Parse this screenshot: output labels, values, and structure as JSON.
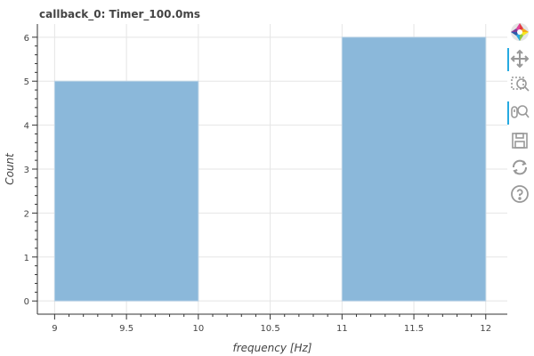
{
  "chart_data": {
    "type": "bar",
    "title": "callback_0: Timer_100.0ms",
    "xlabel": "frequency [Hz]",
    "ylabel": "Count",
    "bins": [
      {
        "x0": 9,
        "x1": 10,
        "count": 5
      },
      {
        "x0": 11,
        "x1": 12,
        "count": 6
      }
    ],
    "xlim": [
      8.88,
      12.15
    ],
    "ylim": [
      -0.3,
      6.3
    ],
    "xticks": [
      "9",
      "9.5",
      "10",
      "10.5",
      "11",
      "11.5",
      "12"
    ],
    "xtick_values": [
      9,
      9.5,
      10,
      10.5,
      11,
      11.5,
      12
    ],
    "yticks": [
      "0",
      "1",
      "2",
      "3",
      "4",
      "5",
      "6"
    ],
    "ytick_values": [
      0,
      1,
      2,
      3,
      4,
      5,
      6
    ],
    "bar_color": "#8bb8da",
    "grid": true
  },
  "toolbar": {
    "tools": [
      {
        "name": "bokeh-logo-icon",
        "active": false
      },
      {
        "name": "pan-icon",
        "active": true
      },
      {
        "name": "box-zoom-icon",
        "active": false
      },
      {
        "name": "wheel-zoom-icon",
        "active": true
      },
      {
        "name": "save-icon",
        "active": false
      },
      {
        "name": "reset-icon",
        "active": false
      },
      {
        "name": "help-icon",
        "active": false
      }
    ]
  }
}
